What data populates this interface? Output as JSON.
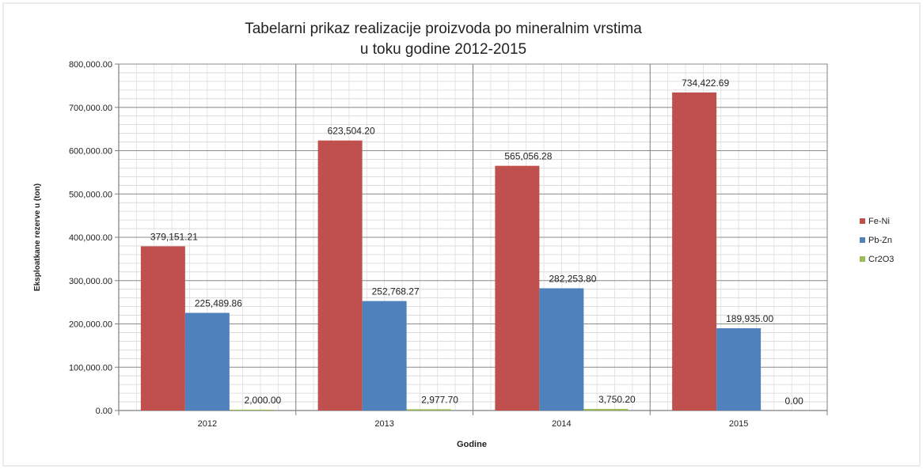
{
  "chart_data": {
    "type": "bar",
    "title": "Tabelarni prikaz realizacije proizvoda po mineralnim vrstima",
    "subtitle": "u toku godine 2012-2015",
    "xlabel": "Godine",
    "ylabel": "Eksploatkane  rezerve u (ton)",
    "categories": [
      "2012",
      "2013",
      "2014",
      "2015"
    ],
    "ylim": [
      0,
      800000
    ],
    "y_ticks": [
      0,
      100000,
      200000,
      300000,
      400000,
      500000,
      600000,
      700000,
      800000
    ],
    "y_tick_labels": [
      "0.00",
      "100,000.00",
      "200,000.00",
      "300,000.00",
      "400,000.00",
      "500,000.00",
      "600,000.00",
      "700,000.00",
      "800,000.00"
    ],
    "grid": true,
    "legend_position": "right",
    "series": [
      {
        "name": "Fe-Ni",
        "color": "#c0504d",
        "values": [
          379151.21,
          623504.2,
          565056.28,
          734422.69
        ],
        "labels": [
          "379,151.21",
          "623,504.20",
          "565,056.28",
          "734,422.69"
        ]
      },
      {
        "name": "Pb-Zn",
        "color": "#4f81bd",
        "values": [
          225489.86,
          252768.27,
          282253.8,
          189935.0
        ],
        "labels": [
          "225,489.86",
          "252,768.27",
          "282,253.80",
          "189,935.00"
        ]
      },
      {
        "name": "Cr2O3",
        "color": "#9bbb59",
        "values": [
          2000.0,
          2977.7,
          3750.2,
          0.0
        ],
        "labels": [
          "2,000.00",
          "2,977.70",
          "3,750.20",
          "0.00"
        ]
      }
    ]
  }
}
